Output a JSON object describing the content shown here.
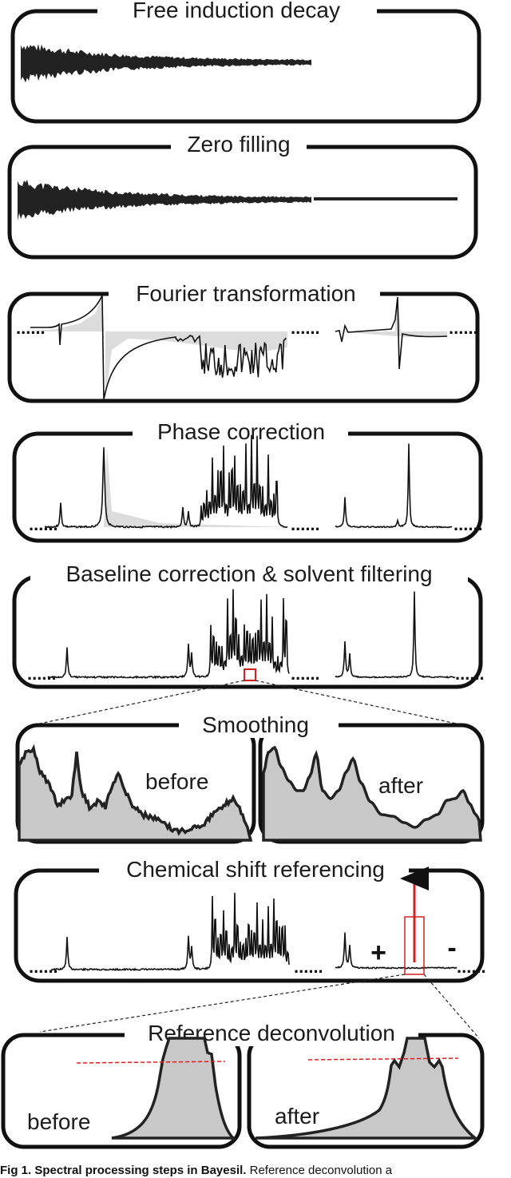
{
  "panels": [
    {
      "title": "Free induction decay"
    },
    {
      "title": "Zero filling"
    },
    {
      "title": "Fourier transformation"
    },
    {
      "title": "Phase correction"
    },
    {
      "title": "Baseline correction & solvent filtering"
    },
    {
      "title": "Smoothing",
      "left_label": "before",
      "right_label": "after"
    },
    {
      "title": "Chemical shift referencing",
      "plus_label": "+",
      "minus_label": "-"
    },
    {
      "title": "Reference deconvolution",
      "left_label": "before",
      "right_label": "after"
    }
  ],
  "ellipsis": "......",
  "caption": {
    "bold": "Fig 1. Spectral processing steps in Bayesil.",
    "text": " Reference deconvolution a"
  },
  "colors": {
    "reference_marker": "#d62020",
    "shade": "#dcdcdc"
  }
}
